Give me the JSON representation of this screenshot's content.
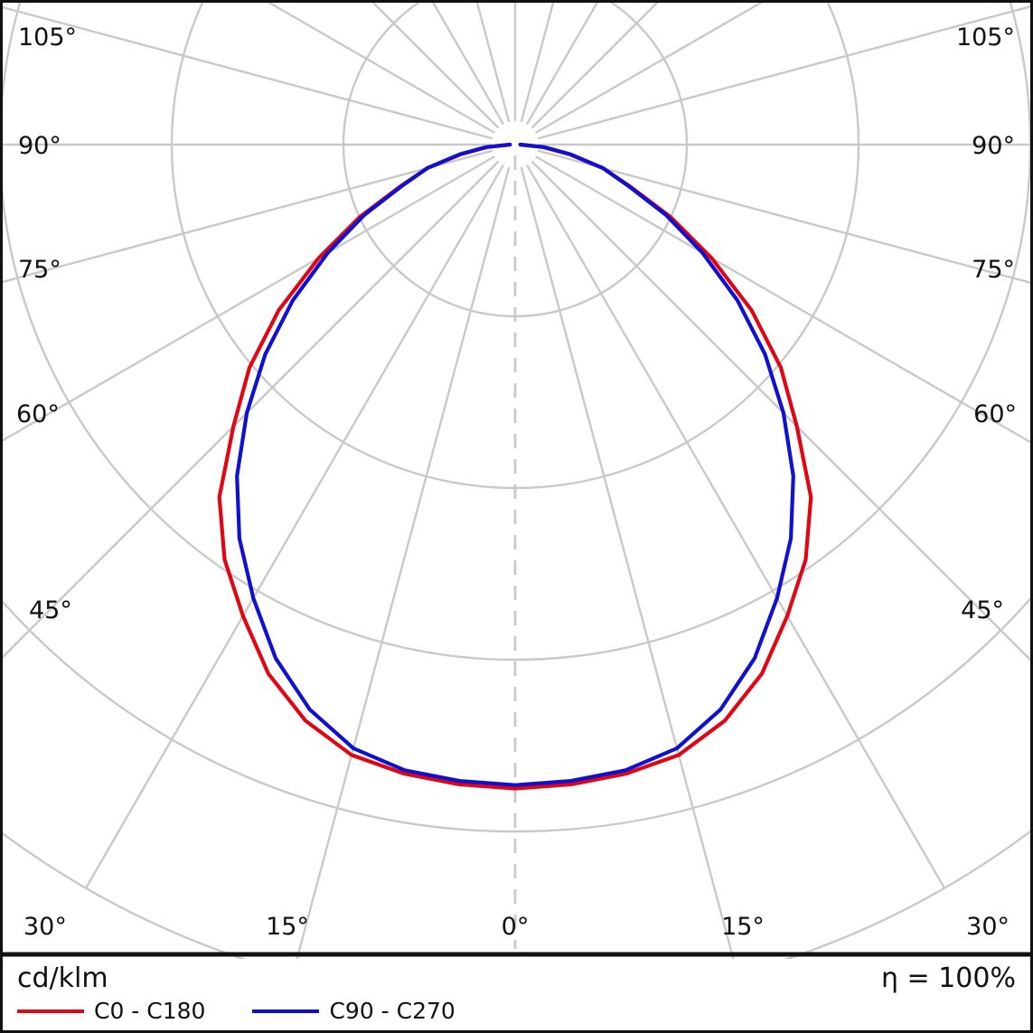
{
  "footer": {
    "unit_label": "cd/klm",
    "efficiency_symbol": "η",
    "efficiency_value": "= 100%"
  },
  "chart_data": {
    "type": "line",
    "variant": "polar-photometric-intensity-distribution",
    "title": "",
    "units": "cd/klm",
    "efficiency": "η = 100%",
    "angle_axis": {
      "zero_direction": "down",
      "label_step_deg": 15,
      "max_labeled_deg": 105
    },
    "radial_axis": {
      "min": 0,
      "max": 500,
      "unit": "cd/klm"
    },
    "gamma_deg": [
      0,
      5,
      10,
      15,
      20,
      25,
      30,
      35,
      40,
      45,
      50,
      55,
      60,
      65,
      70,
      75,
      80,
      85,
      90
    ],
    "series": [
      {
        "name": "C0 - C180",
        "color": "#e00613",
        "values_cd_per_klm": [
          375,
          374,
          372,
          368,
          357,
          340,
          317,
          295,
          268,
          232,
          202,
          168,
          132,
          100,
          71,
          53,
          32,
          16,
          3
        ]
      },
      {
        "name": "C90 - C270",
        "color": "#1010d0",
        "values_cd_per_klm": [
          373,
          372,
          370,
          364,
          350,
          330,
          305,
          280,
          252,
          221,
          190,
          158,
          126,
          97,
          70,
          53,
          33,
          17,
          3
        ]
      }
    ],
    "grid": {
      "color": "#c9c9c9",
      "radial_step_deg": 15,
      "ring_count": 5,
      "ring_step_cd_per_klm": 100,
      "angle_labels": [
        "105°",
        "90°",
        "75°",
        "60°",
        "45°",
        "30°",
        "15°",
        "0°",
        "15°",
        "30°",
        "45°",
        "60°",
        "75°",
        "90°",
        "105°"
      ]
    }
  }
}
